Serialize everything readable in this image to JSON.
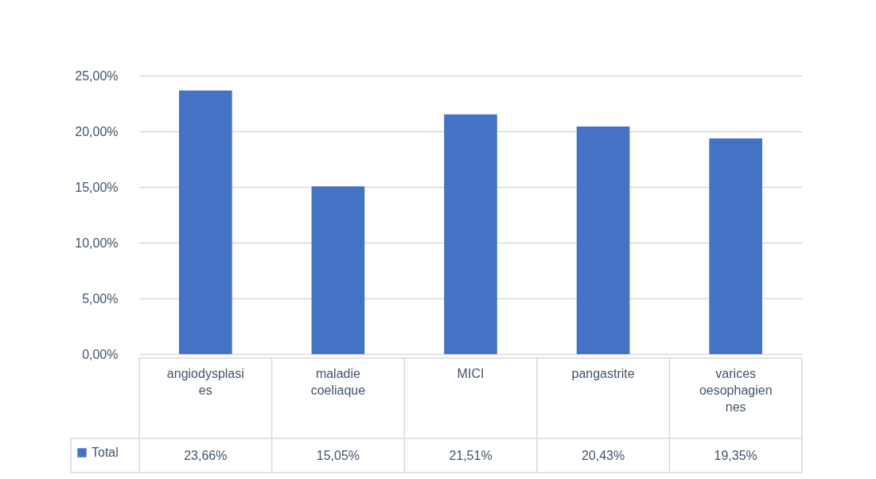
{
  "chart_data": {
    "type": "bar",
    "categories": [
      "angiodysplasies",
      "maladie coeliaque",
      "MICI",
      "pangastrite",
      "varices oesophagiennes"
    ],
    "series": [
      {
        "name": "Total",
        "color": "#4472c4",
        "values": [
          23.66,
          15.05,
          21.51,
          20.43,
          19.35
        ],
        "value_labels": [
          "23,66%",
          "15,05%",
          "21,51%",
          "20,43%",
          "19,35%"
        ]
      }
    ],
    "ylim": [
      0,
      25
    ],
    "yticks": [
      {
        "value": 0,
        "label": "0,00%"
      },
      {
        "value": 5,
        "label": "5,00%"
      },
      {
        "value": 10,
        "label": "10,00%"
      },
      {
        "value": 15,
        "label": "15,00%"
      },
      {
        "value": 20,
        "label": "20,00%"
      },
      {
        "value": 25,
        "label": "25,00%"
      }
    ],
    "grid": "y",
    "legend": "bottom left"
  }
}
